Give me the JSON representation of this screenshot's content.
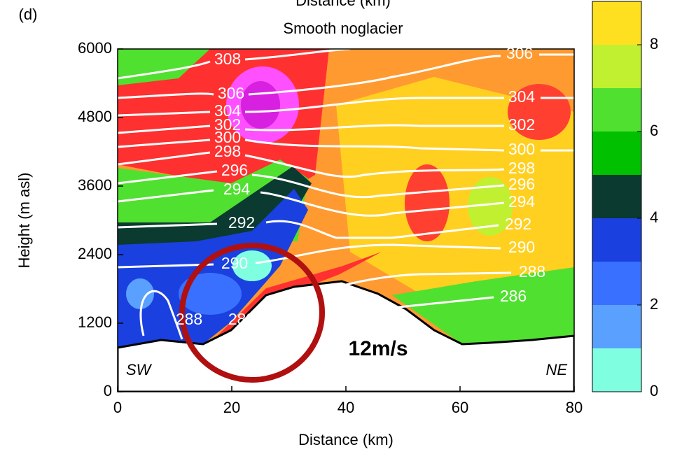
{
  "chart_data": {
    "type": "contour",
    "panel_label": "(d)",
    "top_axis_label": "Distance (km)",
    "title": "Smooth noglacier",
    "x_label": "Distance (km)",
    "y_label": "Height (m asl)",
    "xlim": [
      0,
      80
    ],
    "xticks": [
      0,
      20,
      40,
      60,
      80
    ],
    "ylim": [
      0,
      6000
    ],
    "yticks": [
      0,
      1200,
      2400,
      3600,
      4800,
      6000
    ],
    "colorbar": {
      "levels": [
        0,
        1,
        2,
        3,
        4,
        5,
        6,
        7,
        8,
        9
      ],
      "colors": [
        "#80ffe0",
        "#5aa0ff",
        "#3a70ff",
        "#1a40e0",
        "#0a3a30",
        "#00c000",
        "#50e030",
        "#c0f030",
        "#ffe020"
      ],
      "ticks": [
        0,
        2,
        4,
        6,
        8
      ]
    },
    "contour_labels_left": [
      308,
      306,
      304,
      302,
      300,
      298,
      296,
      294,
      292,
      290,
      288,
      288
    ],
    "contour_labels_right": [
      306,
      304,
      302,
      300,
      298,
      296,
      294,
      292,
      290,
      288,
      286
    ],
    "corner_labels": [
      "SW",
      "NE"
    ],
    "annotation": "12m/s"
  }
}
